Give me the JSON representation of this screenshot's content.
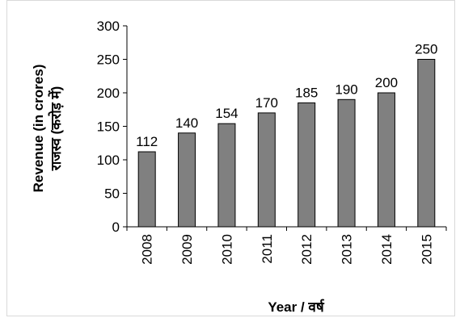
{
  "chart_data": {
    "type": "bar",
    "categories": [
      "2008",
      "2009",
      "2010",
      "2011",
      "2012",
      "2013",
      "2014",
      "2015"
    ],
    "values": [
      112,
      140,
      154,
      170,
      185,
      190,
      200,
      250
    ],
    "data_labels": [
      "112",
      "140",
      "154",
      "170",
      "185",
      "190",
      "200",
      "250"
    ],
    "title": "",
    "xlabel": "Year / वर्ष",
    "ylabel_line1": "Revenue (in crores)",
    "ylabel_line2": "राजस्व (करोड़ में)",
    "ylim": [
      0,
      300
    ],
    "yticks": [
      0,
      50,
      100,
      150,
      200,
      250,
      300
    ],
    "ytick_labels": [
      "0",
      "50",
      "100",
      "150",
      "200",
      "250",
      "300"
    ],
    "grid": false,
    "bar_color": "#808080",
    "bar_edge_color": "#000000"
  }
}
